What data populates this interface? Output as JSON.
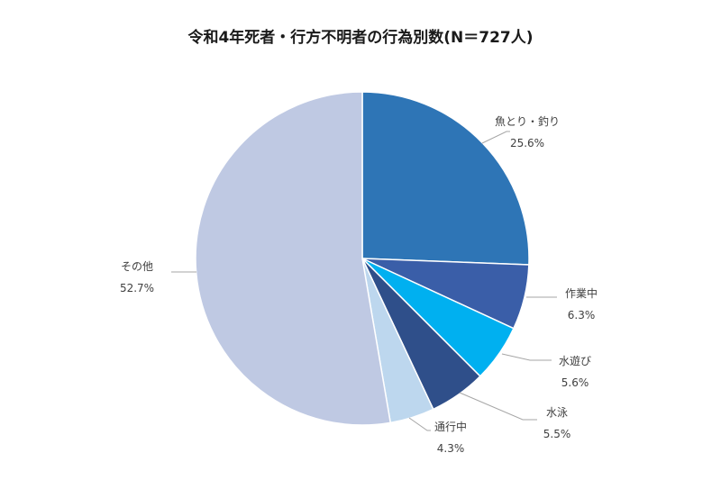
{
  "chart_data": {
    "type": "pie",
    "title": "令和4年死者・行方不明者の行為別数(N＝727人)",
    "slices": [
      {
        "label": "魚とり・釣り",
        "value": 25.6,
        "value_label": "25.6%",
        "color": "#2e75b6"
      },
      {
        "label": "作業中",
        "value": 6.3,
        "value_label": "6.3%",
        "color": "#3a5ea8"
      },
      {
        "label": "水遊び",
        "value": 5.6,
        "value_label": "5.6%",
        "color": "#00b0f0"
      },
      {
        "label": "水泳",
        "value": 5.5,
        "value_label": "5.5%",
        "color": "#2f4f8a"
      },
      {
        "label": "通行中",
        "value": 4.3,
        "value_label": "4.3%",
        "color": "#bdd7ee"
      },
      {
        "label": "その他",
        "value": 52.7,
        "value_label": "52.7%",
        "color": "#bfc9e3"
      }
    ],
    "start_angle": "12 o'clock",
    "direction": "clockwise",
    "legend": "none"
  }
}
